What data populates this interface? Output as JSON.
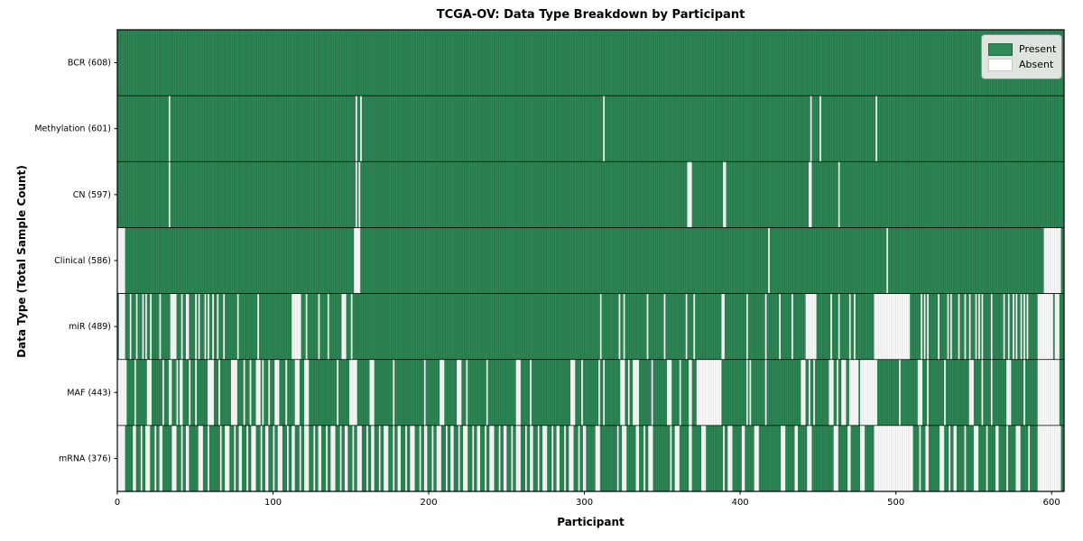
{
  "chart_data": {
    "type": "heatmap",
    "title": "TCGA-OV: Data Type Breakdown by Participant",
    "xlabel": "Participant",
    "ylabel": "Data Type (Total Sample Count)",
    "x_ticks": [
      0,
      100,
      200,
      300,
      400,
      500,
      600
    ],
    "xlim": [
      0,
      608
    ],
    "n_participants": 608,
    "grid": false,
    "legend": {
      "position": "upper right",
      "entries": [
        {
          "label": "Present",
          "color": "#2e8b57"
        },
        {
          "label": "Absent",
          "color": "#ffffff"
        }
      ]
    },
    "colors": {
      "present": "#2e8b57",
      "present_edge": "#1a5234",
      "absent": "#fdfdfd",
      "absent_edge": "#c3c7c3",
      "row_divider": "#000000",
      "plot_border": "#000000"
    },
    "rows": [
      {
        "label": "BCR (608)",
        "name": "BCR",
        "present_count": 608,
        "absent_count": 0,
        "absent_runs": []
      },
      {
        "label": "Methylation (601)",
        "name": "Methylation",
        "present_count": 601,
        "absent_count": 7,
        "absent_runs": [
          [
            33,
            33
          ],
          [
            153,
            153
          ],
          [
            156,
            156
          ],
          [
            312,
            312
          ],
          [
            445,
            445
          ],
          [
            451,
            451
          ],
          [
            487,
            487
          ]
        ]
      },
      {
        "label": "CN (597)",
        "name": "CN",
        "present_count": 597,
        "absent_count": 11,
        "absent_runs": [
          [
            33,
            33
          ],
          [
            153,
            153
          ],
          [
            155,
            155
          ],
          [
            366,
            368
          ],
          [
            389,
            390
          ],
          [
            444,
            445
          ],
          [
            463,
            463
          ]
        ]
      },
      {
        "label": "Clinical (586)",
        "name": "Clinical",
        "present_count": 586,
        "absent_count": 22,
        "absent_runs": [
          [
            0,
            4
          ],
          [
            152,
            155
          ],
          [
            418,
            418
          ],
          [
            494,
            494
          ],
          [
            595,
            605
          ]
        ]
      },
      {
        "label": "miR (489)",
        "name": "miR",
        "present_count": 489,
        "absent_count": 119,
        "absent_runs": [
          [
            1,
            4
          ],
          [
            8,
            8
          ],
          [
            12,
            12
          ],
          [
            16,
            16
          ],
          [
            18,
            18
          ],
          [
            21,
            21
          ],
          [
            27,
            27
          ],
          [
            34,
            37
          ],
          [
            41,
            41
          ],
          [
            44,
            45
          ],
          [
            50,
            50
          ],
          [
            52,
            52
          ],
          [
            56,
            56
          ],
          [
            58,
            58
          ],
          [
            61,
            61
          ],
          [
            64,
            64
          ],
          [
            68,
            68
          ],
          [
            77,
            77
          ],
          [
            90,
            90
          ],
          [
            112,
            117
          ],
          [
            121,
            121
          ],
          [
            129,
            129
          ],
          [
            135,
            135
          ],
          [
            144,
            146
          ],
          [
            150,
            150
          ],
          [
            310,
            310
          ],
          [
            322,
            322
          ],
          [
            325,
            325
          ],
          [
            340,
            340
          ],
          [
            351,
            351
          ],
          [
            365,
            365
          ],
          [
            370,
            370
          ],
          [
            388,
            389
          ],
          [
            404,
            404
          ],
          [
            416,
            416
          ],
          [
            425,
            425
          ],
          [
            433,
            433
          ],
          [
            442,
            448
          ],
          [
            458,
            458
          ],
          [
            463,
            463
          ],
          [
            470,
            470
          ],
          [
            473,
            473
          ],
          [
            486,
            508
          ],
          [
            516,
            516
          ],
          [
            518,
            518
          ],
          [
            520,
            520
          ],
          [
            527,
            527
          ],
          [
            533,
            533
          ],
          [
            535,
            535
          ],
          [
            540,
            540
          ],
          [
            544,
            544
          ],
          [
            547,
            547
          ],
          [
            551,
            551
          ],
          [
            553,
            553
          ],
          [
            555,
            555
          ],
          [
            561,
            561
          ],
          [
            569,
            569
          ],
          [
            572,
            572
          ],
          [
            575,
            575
          ],
          [
            577,
            577
          ],
          [
            580,
            580
          ],
          [
            582,
            582
          ],
          [
            584,
            584
          ],
          [
            591,
            600
          ],
          [
            602,
            604
          ]
        ]
      },
      {
        "label": "MAF (443)",
        "name": "MAF",
        "present_count": 443,
        "absent_count": 165,
        "absent_runs": [
          [
            0,
            5
          ],
          [
            11,
            11
          ],
          [
            19,
            21
          ],
          [
            29,
            29
          ],
          [
            33,
            34
          ],
          [
            38,
            38
          ],
          [
            40,
            41
          ],
          [
            46,
            46
          ],
          [
            50,
            50
          ],
          [
            58,
            61
          ],
          [
            65,
            65
          ],
          [
            73,
            76
          ],
          [
            81,
            81
          ],
          [
            85,
            85
          ],
          [
            89,
            91
          ],
          [
            93,
            93
          ],
          [
            97,
            97
          ],
          [
            101,
            103
          ],
          [
            108,
            108
          ],
          [
            114,
            116
          ],
          [
            120,
            122
          ],
          [
            141,
            141
          ],
          [
            149,
            153
          ],
          [
            162,
            164
          ],
          [
            177,
            177
          ],
          [
            197,
            197
          ],
          [
            207,
            209
          ],
          [
            218,
            220
          ],
          [
            224,
            224
          ],
          [
            237,
            237
          ],
          [
            256,
            258
          ],
          [
            265,
            265
          ],
          [
            291,
            293
          ],
          [
            298,
            298
          ],
          [
            309,
            309
          ],
          [
            312,
            312
          ],
          [
            323,
            325
          ],
          [
            328,
            328
          ],
          [
            331,
            334
          ],
          [
            343,
            343
          ],
          [
            353,
            355
          ],
          [
            361,
            361
          ],
          [
            367,
            368
          ],
          [
            372,
            387
          ],
          [
            404,
            404
          ],
          [
            406,
            406
          ],
          [
            416,
            416
          ],
          [
            439,
            441
          ],
          [
            444,
            444
          ],
          [
            447,
            447
          ],
          [
            457,
            459
          ],
          [
            462,
            462
          ],
          [
            465,
            467
          ],
          [
            470,
            475
          ],
          [
            477,
            487
          ],
          [
            502,
            502
          ],
          [
            514,
            516
          ],
          [
            520,
            520
          ],
          [
            531,
            531
          ],
          [
            547,
            549
          ],
          [
            555,
            555
          ],
          [
            561,
            561
          ],
          [
            571,
            573
          ],
          [
            582,
            582
          ],
          [
            591,
            604
          ]
        ]
      },
      {
        "label": "mRNA (376)",
        "name": "mRNA",
        "present_count": 376,
        "absent_count": 232,
        "absent_runs": [
          [
            0,
            4
          ],
          [
            10,
            11
          ],
          [
            15,
            15
          ],
          [
            18,
            20
          ],
          [
            24,
            24
          ],
          [
            27,
            28
          ],
          [
            35,
            37
          ],
          [
            41,
            41
          ],
          [
            44,
            45
          ],
          [
            52,
            54
          ],
          [
            58,
            58
          ],
          [
            66,
            66
          ],
          [
            69,
            71
          ],
          [
            75,
            75
          ],
          [
            78,
            79
          ],
          [
            83,
            83
          ],
          [
            86,
            88
          ],
          [
            92,
            92
          ],
          [
            95,
            96
          ],
          [
            100,
            100
          ],
          [
            103,
            105
          ],
          [
            109,
            109
          ],
          [
            112,
            113
          ],
          [
            117,
            117
          ],
          [
            120,
            122
          ],
          [
            126,
            126
          ],
          [
            129,
            130
          ],
          [
            134,
            134
          ],
          [
            137,
            139
          ],
          [
            143,
            143
          ],
          [
            146,
            147
          ],
          [
            151,
            151
          ],
          [
            154,
            156
          ],
          [
            160,
            160
          ],
          [
            163,
            164
          ],
          [
            168,
            168
          ],
          [
            171,
            173
          ],
          [
            177,
            177
          ],
          [
            180,
            181
          ],
          [
            185,
            185
          ],
          [
            188,
            190
          ],
          [
            194,
            194
          ],
          [
            197,
            198
          ],
          [
            202,
            202
          ],
          [
            205,
            207
          ],
          [
            211,
            211
          ],
          [
            214,
            215
          ],
          [
            219,
            219
          ],
          [
            222,
            224
          ],
          [
            228,
            228
          ],
          [
            231,
            232
          ],
          [
            236,
            236
          ],
          [
            239,
            241
          ],
          [
            245,
            245
          ],
          [
            248,
            249
          ],
          [
            253,
            253
          ],
          [
            256,
            258
          ],
          [
            262,
            262
          ],
          [
            265,
            266
          ],
          [
            270,
            270
          ],
          [
            273,
            275
          ],
          [
            279,
            279
          ],
          [
            282,
            283
          ],
          [
            287,
            287
          ],
          [
            290,
            292
          ],
          [
            296,
            296
          ],
          [
            299,
            300
          ],
          [
            307,
            309
          ],
          [
            321,
            321
          ],
          [
            324,
            326
          ],
          [
            333,
            334
          ],
          [
            338,
            338
          ],
          [
            341,
            343
          ],
          [
            355,
            355
          ],
          [
            358,
            360
          ],
          [
            367,
            368
          ],
          [
            375,
            377
          ],
          [
            389,
            389
          ],
          [
            392,
            394
          ],
          [
            401,
            402
          ],
          [
            409,
            411
          ],
          [
            426,
            428
          ],
          [
            435,
            436
          ],
          [
            443,
            445
          ],
          [
            460,
            462
          ],
          [
            469,
            470
          ],
          [
            477,
            479
          ],
          [
            486,
            510
          ],
          [
            515,
            515
          ],
          [
            519,
            520
          ],
          [
            528,
            530
          ],
          [
            534,
            534
          ],
          [
            537,
            538
          ],
          [
            544,
            544
          ],
          [
            550,
            552
          ],
          [
            558,
            558
          ],
          [
            564,
            565
          ],
          [
            571,
            571
          ],
          [
            577,
            579
          ],
          [
            585,
            585
          ],
          [
            591,
            605
          ]
        ]
      }
    ]
  }
}
